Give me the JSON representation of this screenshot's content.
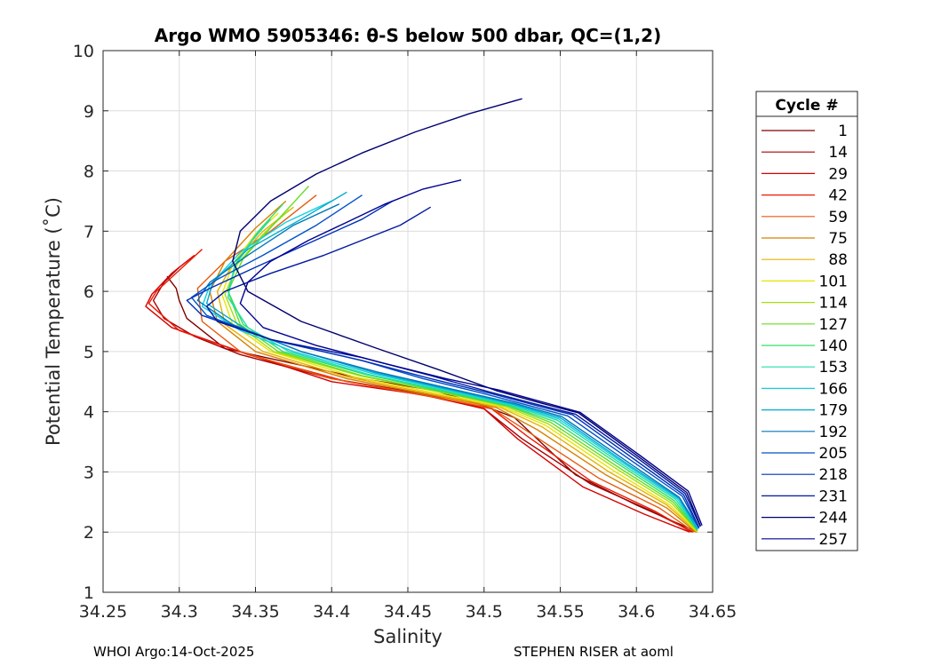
{
  "chart_data": {
    "type": "line",
    "title": "Argo WMO 5905346: θ-S below 500 dbar,  QC=(1,2)",
    "xlabel": "Salinity",
    "ylabel": "Potential Temperature (˚C)",
    "xlim": [
      34.25,
      34.65
    ],
    "ylim": [
      1,
      10
    ],
    "xticks": [
      "34.25",
      "34.3",
      "34.35",
      "34.4",
      "34.45",
      "34.5",
      "34.55",
      "34.6",
      "34.65"
    ],
    "yticks": [
      "1",
      "2",
      "3",
      "4",
      "5",
      "6",
      "7",
      "8",
      "9",
      "10"
    ],
    "grid": true,
    "legend": {
      "title": "Cycle #",
      "position": "right",
      "entries": [
        {
          "label": "1",
          "color": "#800000"
        },
        {
          "label": "14",
          "color": "#a50000"
        },
        {
          "label": "29",
          "color": "#d40000"
        },
        {
          "label": "42",
          "color": "#ee1a00"
        },
        {
          "label": "59",
          "color": "#e65a10"
        },
        {
          "label": "75",
          "color": "#d88000"
        },
        {
          "label": "88",
          "color": "#e8b000"
        },
        {
          "label": "101",
          "color": "#e6e600"
        },
        {
          "label": "114",
          "color": "#aadd10"
        },
        {
          "label": "127",
          "color": "#66dd22"
        },
        {
          "label": "140",
          "color": "#33dd66"
        },
        {
          "label": "153",
          "color": "#22ddaa"
        },
        {
          "label": "166",
          "color": "#11d0e0"
        },
        {
          "label": "179",
          "color": "#00aacc"
        },
        {
          "label": "192",
          "color": "#0077bb"
        },
        {
          "label": "205",
          "color": "#0050c8"
        },
        {
          "label": "218",
          "color": "#0030b8"
        },
        {
          "label": "231",
          "color": "#0018a0"
        },
        {
          "label": "244",
          "color": "#00006e"
        },
        {
          "label": "257",
          "color": "#000090"
        }
      ]
    },
    "series": [
      {
        "name": "1",
        "color": "#800000",
        "x": [
          34.292,
          34.298,
          34.3,
          34.305,
          34.33,
          34.42,
          34.468,
          34.5,
          34.52,
          34.56,
          34.6,
          34.64
        ],
        "y": [
          6.25,
          6.05,
          5.85,
          5.55,
          5.05,
          4.55,
          4.35,
          4.1,
          3.9,
          2.95,
          2.45,
          2.0
        ]
      },
      {
        "name": "14",
        "color": "#a50000",
        "x": [
          34.3,
          34.29,
          34.283,
          34.29,
          34.31,
          34.34,
          34.4,
          34.46,
          34.5,
          34.525,
          34.57,
          34.61,
          34.637
        ],
        "y": [
          6.4,
          6.15,
          5.85,
          5.55,
          5.25,
          4.95,
          4.55,
          4.3,
          4.05,
          3.55,
          2.8,
          2.35,
          2.0
        ]
      },
      {
        "name": "29",
        "color": "#d40000",
        "x": [
          34.31,
          34.295,
          34.282,
          34.278,
          34.295,
          34.34,
          34.4,
          34.46,
          34.5,
          34.522,
          34.565,
          34.605,
          34.635
        ],
        "y": [
          6.6,
          6.3,
          5.95,
          5.75,
          5.4,
          5.0,
          4.5,
          4.28,
          4.05,
          3.55,
          2.75,
          2.3,
          2.0
        ]
      },
      {
        "name": "42",
        "color": "#ee1a00",
        "x": [
          34.315,
          34.3,
          34.285,
          34.28,
          34.3,
          34.345,
          34.41,
          34.465,
          34.505,
          34.528,
          34.57,
          34.612,
          34.636
        ],
        "y": [
          6.7,
          6.35,
          6.0,
          5.8,
          5.35,
          4.95,
          4.5,
          4.25,
          4.05,
          3.6,
          2.85,
          2.35,
          2.0
        ]
      },
      {
        "name": "59",
        "color": "#e65a10",
        "x": [
          34.39,
          34.36,
          34.33,
          34.312,
          34.315,
          34.34,
          34.4,
          34.46,
          34.505,
          34.53,
          34.575,
          34.615,
          34.638
        ],
        "y": [
          7.6,
          7.0,
          6.5,
          6.05,
          5.5,
          5.0,
          4.55,
          4.28,
          4.06,
          3.65,
          2.9,
          2.4,
          2.0
        ]
      },
      {
        "name": "75",
        "color": "#d88000",
        "x": [
          34.37,
          34.35,
          34.33,
          34.32,
          34.325,
          34.35,
          34.41,
          34.465,
          34.508,
          34.535,
          34.58,
          34.62,
          34.639
        ],
        "y": [
          7.5,
          7.05,
          6.5,
          6.0,
          5.5,
          5.0,
          4.55,
          4.28,
          4.07,
          3.7,
          2.95,
          2.4,
          2.0
        ]
      },
      {
        "name": "88",
        "color": "#e8b000",
        "x": [
          34.375,
          34.355,
          34.335,
          34.325,
          34.33,
          34.355,
          34.41,
          34.465,
          34.51,
          34.538,
          34.582,
          34.62,
          34.64
        ],
        "y": [
          7.4,
          7.0,
          6.45,
          6.0,
          5.45,
          5.0,
          4.58,
          4.3,
          4.08,
          3.75,
          3.0,
          2.45,
          2.0
        ]
      },
      {
        "name": "101",
        "color": "#e6e600",
        "x": [
          34.365,
          34.35,
          34.335,
          34.328,
          34.335,
          34.36,
          34.415,
          34.47,
          34.512,
          34.54,
          34.585,
          34.622,
          34.64
        ],
        "y": [
          7.3,
          6.95,
          6.45,
          5.95,
          5.45,
          5.0,
          4.58,
          4.3,
          4.08,
          3.78,
          3.02,
          2.45,
          2.0
        ]
      },
      {
        "name": "114",
        "color": "#aadd10",
        "x": [
          34.372,
          34.355,
          34.338,
          34.33,
          34.338,
          34.362,
          34.418,
          34.472,
          34.514,
          34.542,
          34.587,
          34.623,
          34.64
        ],
        "y": [
          7.35,
          6.95,
          6.45,
          5.95,
          5.45,
          5.0,
          4.6,
          4.32,
          4.09,
          3.8,
          3.05,
          2.48,
          2.02
        ]
      },
      {
        "name": "127",
        "color": "#66dd22",
        "x": [
          34.385,
          34.365,
          34.342,
          34.332,
          34.34,
          34.365,
          34.42,
          34.474,
          34.515,
          34.544,
          34.588,
          34.624,
          34.64
        ],
        "y": [
          7.75,
          7.2,
          6.55,
          6.0,
          5.45,
          5.0,
          4.6,
          4.32,
          4.1,
          3.82,
          3.08,
          2.5,
          2.02
        ]
      },
      {
        "name": "140",
        "color": "#33dd66",
        "x": [
          34.368,
          34.352,
          34.338,
          34.332,
          34.342,
          34.368,
          34.422,
          34.475,
          34.516,
          34.546,
          34.59,
          34.625,
          34.64
        ],
        "y": [
          7.45,
          7.0,
          6.5,
          6.0,
          5.45,
          5.0,
          4.62,
          4.33,
          4.1,
          3.84,
          3.1,
          2.52,
          2.03
        ]
      },
      {
        "name": "153",
        "color": "#22ddaa",
        "x": [
          34.36,
          34.348,
          34.336,
          34.332,
          34.345,
          34.372,
          34.424,
          34.476,
          34.517,
          34.548,
          34.591,
          34.626,
          34.64
        ],
        "y": [
          7.2,
          6.85,
          6.4,
          5.9,
          5.4,
          5.0,
          4.62,
          4.34,
          4.11,
          3.86,
          3.12,
          2.54,
          2.04
        ]
      },
      {
        "name": "166",
        "color": "#11d0e0",
        "x": [
          34.4,
          34.37,
          34.34,
          34.32,
          34.315,
          34.34,
          34.375,
          34.426,
          34.478,
          34.518,
          34.549,
          34.592,
          34.627,
          34.64
        ],
        "y": [
          7.5,
          7.15,
          6.65,
          6.1,
          5.75,
          5.35,
          5.0,
          4.64,
          4.35,
          4.12,
          3.88,
          3.14,
          2.55,
          2.05
        ]
      },
      {
        "name": "179",
        "color": "#00aacc",
        "x": [
          34.41,
          34.38,
          34.345,
          34.322,
          34.318,
          34.345,
          34.38,
          34.428,
          34.479,
          34.519,
          34.55,
          34.593,
          34.628,
          34.64
        ],
        "y": [
          7.65,
          7.2,
          6.7,
          6.15,
          5.8,
          5.35,
          5.0,
          4.65,
          4.36,
          4.13,
          3.9,
          3.15,
          2.56,
          2.05
        ]
      },
      {
        "name": "192",
        "color": "#0077bb",
        "x": [
          34.405,
          34.375,
          34.345,
          34.32,
          34.312,
          34.335,
          34.38,
          34.43,
          34.48,
          34.52,
          34.551,
          34.594,
          34.628,
          34.641
        ],
        "y": [
          7.45,
          7.1,
          6.6,
          6.15,
          5.85,
          5.45,
          5.0,
          4.66,
          4.37,
          4.14,
          3.92,
          3.17,
          2.58,
          2.06
        ]
      },
      {
        "name": "205",
        "color": "#0050c8",
        "x": [
          34.42,
          34.39,
          34.355,
          34.325,
          34.308,
          34.318,
          34.36,
          34.42,
          34.46,
          34.5,
          34.53,
          34.555,
          34.596,
          34.63,
          34.641
        ],
        "y": [
          7.6,
          7.1,
          6.6,
          6.2,
          5.9,
          5.6,
          5.2,
          4.85,
          4.55,
          4.3,
          4.1,
          3.93,
          3.2,
          2.6,
          2.07
        ]
      },
      {
        "name": "218",
        "color": "#0030b8",
        "x": [
          34.44,
          34.42,
          34.385,
          34.35,
          34.32,
          34.305,
          34.315,
          34.36,
          34.42,
          34.465,
          34.505,
          34.535,
          34.558,
          34.598,
          34.631,
          34.641
        ],
        "y": [
          7.5,
          7.2,
          6.8,
          6.4,
          6.05,
          5.85,
          5.6,
          5.2,
          4.85,
          4.55,
          4.3,
          4.1,
          3.95,
          3.22,
          2.62,
          2.08
        ]
      },
      {
        "name": "231",
        "color": "#0018a0",
        "x": [
          34.465,
          34.445,
          34.42,
          34.395,
          34.36,
          34.33,
          34.318,
          34.325,
          34.36,
          34.42,
          34.465,
          34.505,
          34.535,
          34.56,
          34.6,
          34.632,
          34.642
        ],
        "y": [
          7.4,
          7.1,
          6.85,
          6.6,
          6.3,
          6.0,
          5.75,
          5.5,
          5.2,
          4.9,
          4.6,
          4.32,
          4.12,
          3.96,
          3.24,
          2.64,
          2.09
        ]
      },
      {
        "name": "244",
        "color": "#00006e",
        "x": [
          34.525,
          34.49,
          34.455,
          34.42,
          34.39,
          34.36,
          34.34,
          34.335,
          34.345,
          34.38,
          34.43,
          34.47,
          34.508,
          34.538,
          34.562,
          34.601,
          34.633,
          34.642
        ],
        "y": [
          9.2,
          8.95,
          8.65,
          8.3,
          7.95,
          7.5,
          7.0,
          6.5,
          6.0,
          5.5,
          5.05,
          4.7,
          4.35,
          4.14,
          3.98,
          3.26,
          2.66,
          2.1
        ]
      },
      {
        "name": "257",
        "color": "#000090",
        "x": [
          34.485,
          34.46,
          34.435,
          34.41,
          34.385,
          34.36,
          34.345,
          34.34,
          34.355,
          34.39,
          34.435,
          34.475,
          34.51,
          34.54,
          34.563,
          34.602,
          34.634,
          34.643
        ],
        "y": [
          7.85,
          7.7,
          7.45,
          7.15,
          6.85,
          6.5,
          6.15,
          5.8,
          5.4,
          5.1,
          4.8,
          4.55,
          4.36,
          4.15,
          3.99,
          3.28,
          2.68,
          2.11
        ]
      }
    ]
  },
  "footer": {
    "left": "WHOI Argo:14-Oct-2025",
    "right": "STEPHEN RISER at aoml"
  }
}
